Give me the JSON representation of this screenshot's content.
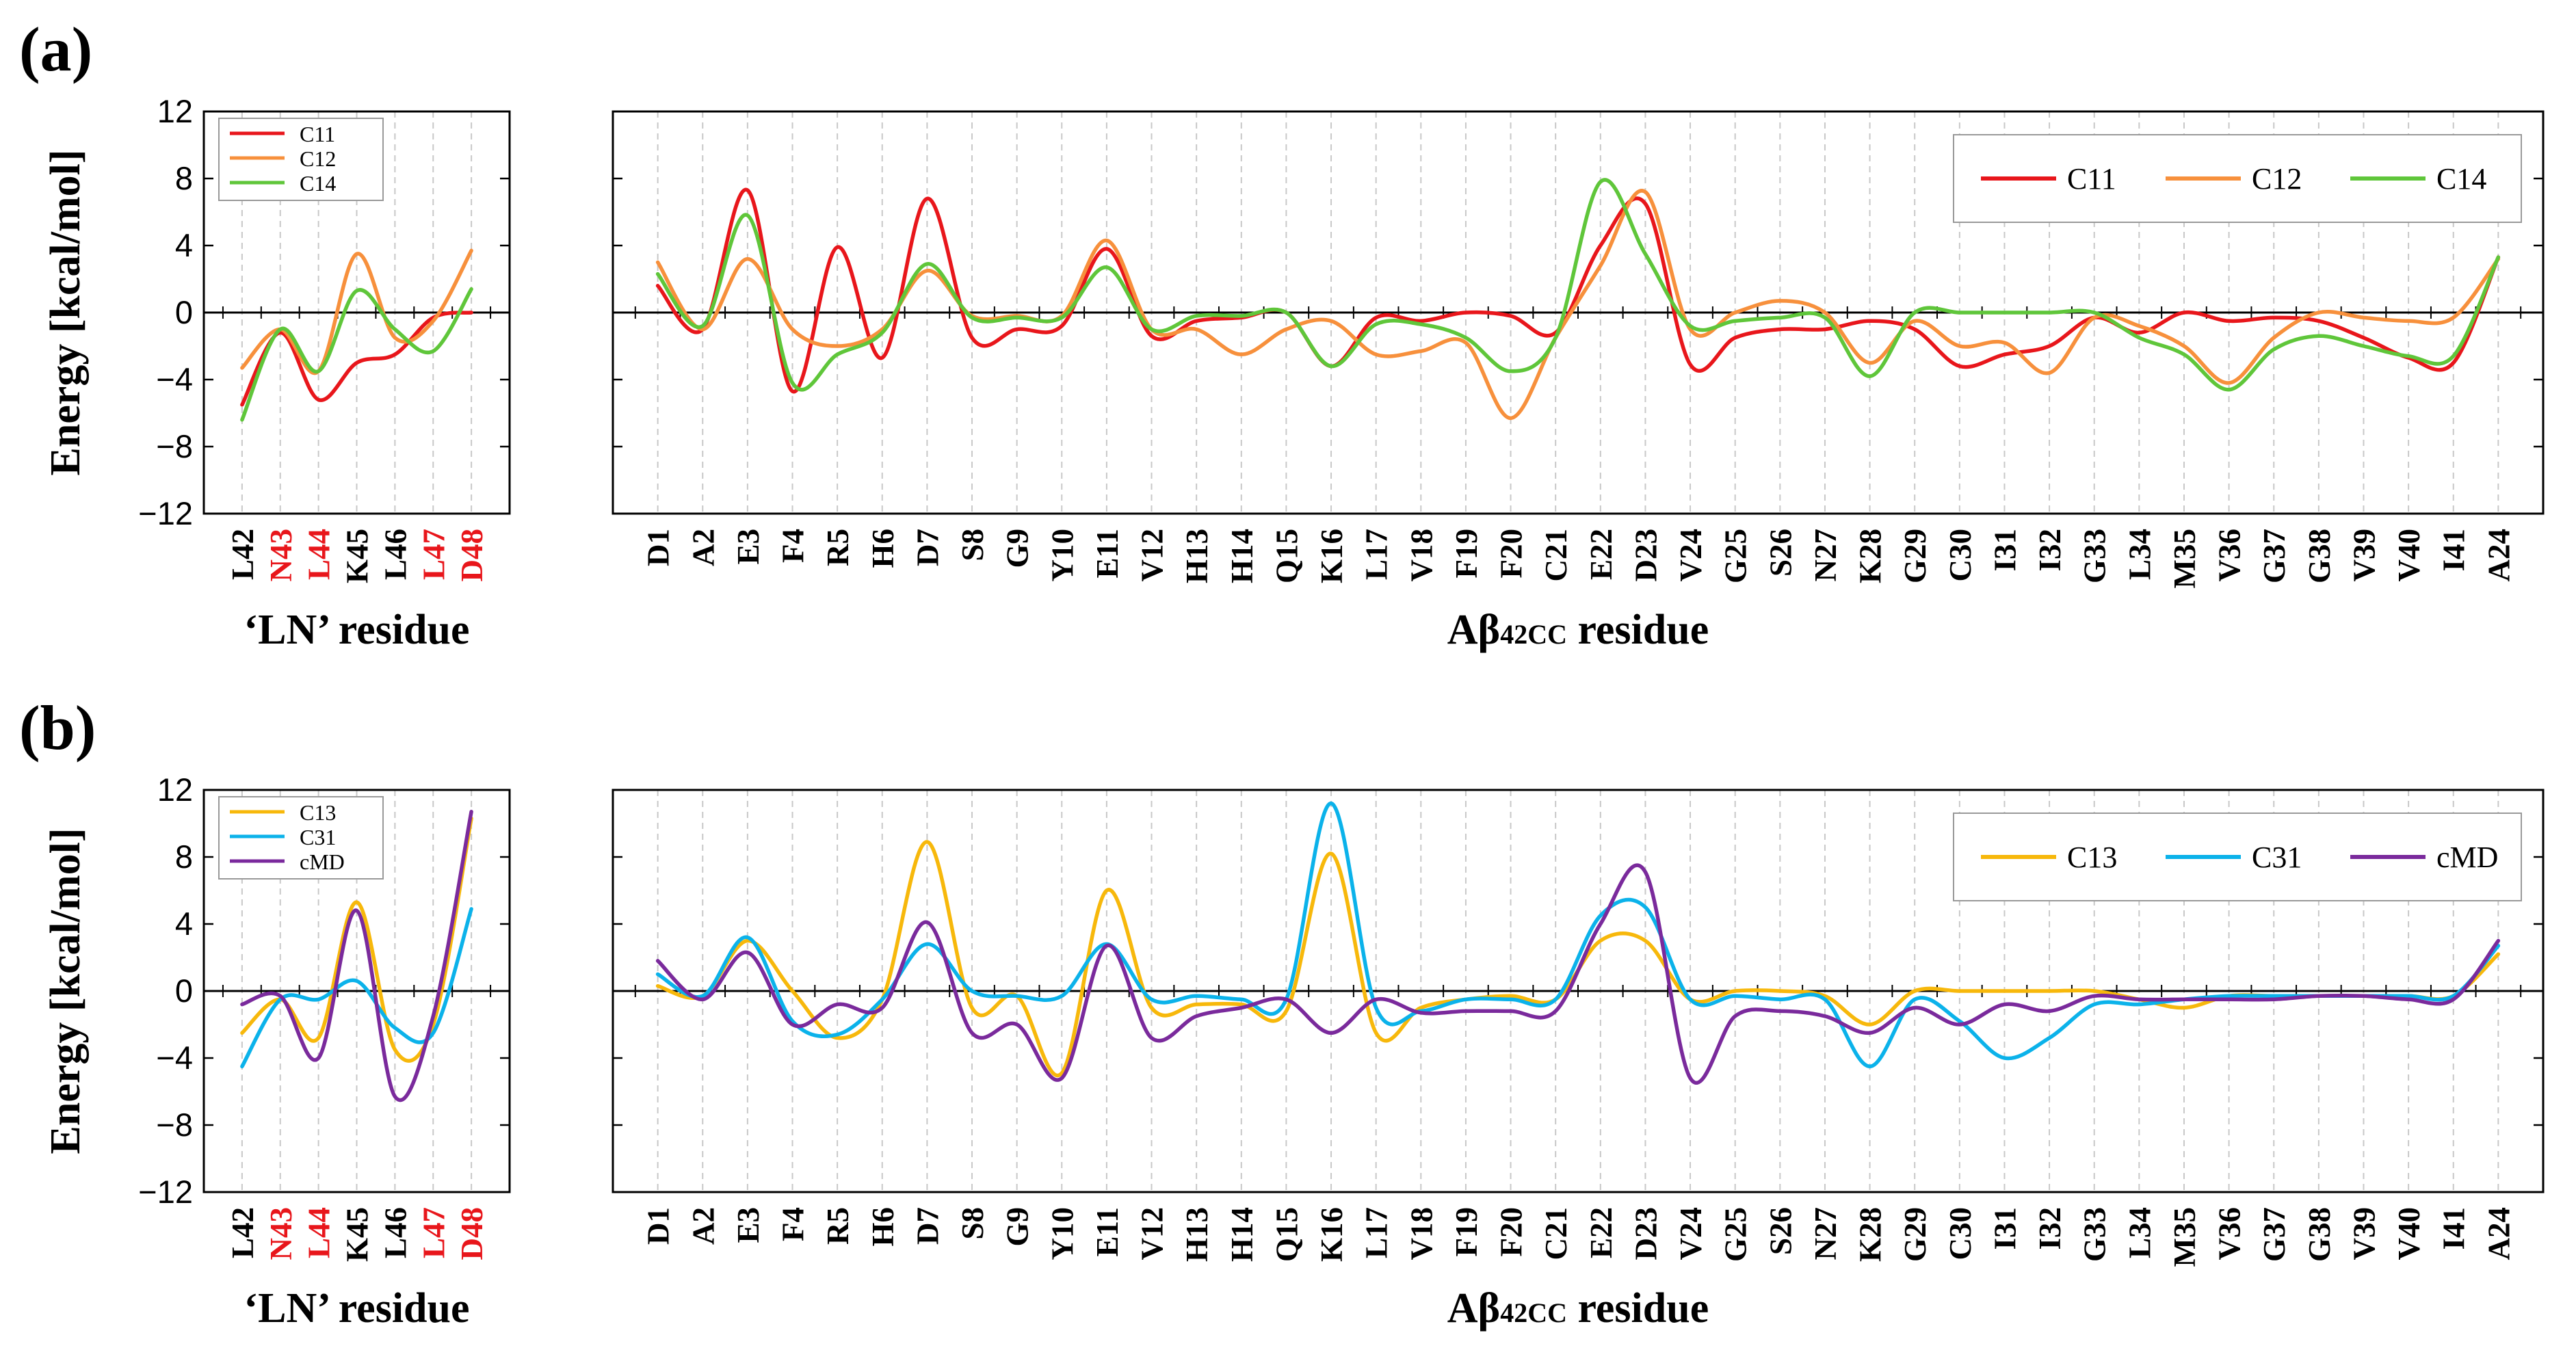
{
  "panels": [
    {
      "id": "a",
      "label": "(a)",
      "ylabel": "Energy [kcal/mol]",
      "yticks": [
        "12",
        "8",
        "4",
        "0",
        "−4",
        "−8",
        "−12"
      ],
      "colors": {
        "C11": "#e8161b",
        "C12": "#f7903c",
        "C14": "#5fc63a"
      },
      "left": {
        "xlabel": "‘LN’ residue",
        "categories": [
          "L42",
          "N43",
          "L44",
          "K45",
          "L46",
          "L47",
          "D48"
        ],
        "red_categories": [
          "N43",
          "L44",
          "L47",
          "D48"
        ],
        "legend": [
          "C11",
          "C12",
          "C14"
        ],
        "series": [
          {
            "name": "C11",
            "values": [
              -5.5,
              -1.2,
              -5.2,
              -3.0,
              -2.5,
              -0.3,
              0.0
            ]
          },
          {
            "name": "C12",
            "values": [
              -3.3,
              -1.0,
              -3.5,
              3.5,
              -1.5,
              -0.5,
              3.7
            ]
          },
          {
            "name": "C14",
            "values": [
              -6.4,
              -1.0,
              -3.5,
              1.3,
              -1.0,
              -2.3,
              1.4
            ]
          }
        ]
      },
      "right": {
        "xlabel_pre": "Aβ",
        "xlabel_sub": "42CC",
        "xlabel_post": " residue",
        "categories": [
          "D1",
          "A2",
          "E3",
          "F4",
          "R5",
          "H6",
          "D7",
          "S8",
          "G9",
          "Y10",
          "E11",
          "V12",
          "H13",
          "H14",
          "Q15",
          "K16",
          "L17",
          "V18",
          "F19",
          "F20",
          "C21",
          "E22",
          "D23",
          "V24",
          "G25",
          "S26",
          "N27",
          "K28",
          "G29",
          "C30",
          "I31",
          "I32",
          "G33",
          "L34",
          "M35",
          "V36",
          "G37",
          "G38",
          "V39",
          "V40",
          "I41",
          "A24"
        ],
        "legend": [
          "C11",
          "C12",
          "C14"
        ],
        "series": [
          {
            "name": "C11",
            "values": [
              1.6,
              -1.0,
              7.3,
              -4.7,
              3.9,
              -2.7,
              6.8,
              -1.5,
              -1.0,
              -0.8,
              3.8,
              -1.4,
              -0.5,
              -0.3,
              0.0,
              -3.2,
              -0.3,
              -0.5,
              0.0,
              -0.2,
              -1.2,
              4.0,
              6.5,
              -3.1,
              -1.5,
              -1.0,
              -1.0,
              -0.5,
              -1.0,
              -3.2,
              -2.5,
              -2.0,
              -0.3,
              -1.2,
              0.0,
              -0.5,
              -0.3,
              -0.5,
              -1.5,
              -2.7,
              -3.0,
              3.3
            ]
          },
          {
            "name": "C12",
            "values": [
              3.0,
              -1.0,
              3.2,
              -1.0,
              -2.0,
              -1.0,
              2.5,
              -0.2,
              -0.2,
              -0.2,
              4.3,
              -1.0,
              -1.0,
              -2.5,
              -1.0,
              -0.5,
              -2.5,
              -2.3,
              -1.8,
              -6.3,
              -1.5,
              2.8,
              7.2,
              -1.0,
              0.0,
              0.7,
              0.0,
              -3.0,
              -0.5,
              -2.0,
              -1.8,
              -3.6,
              -0.3,
              -0.8,
              -2.0,
              -4.2,
              -1.5,
              0.0,
              -0.3,
              -0.5,
              -0.3,
              3.2
            ]
          },
          {
            "name": "C14",
            "values": [
              2.3,
              -0.8,
              5.8,
              -4.2,
              -2.5,
              -1.2,
              2.9,
              -0.3,
              -0.3,
              -0.3,
              2.7,
              -1.0,
              -0.2,
              -0.2,
              0.0,
              -3.2,
              -0.7,
              -0.7,
              -1.5,
              -3.5,
              -1.5,
              7.8,
              3.5,
              -0.8,
              -0.5,
              -0.3,
              -0.3,
              -3.8,
              0.0,
              0.0,
              0.0,
              0.0,
              0.0,
              -1.5,
              -2.5,
              -4.6,
              -2.2,
              -1.4,
              -2.0,
              -2.6,
              -2.6,
              3.3
            ]
          }
        ]
      }
    },
    {
      "id": "b",
      "label": "(b)",
      "ylabel": "Energy [kcal/mol]",
      "yticks": [
        "12",
        "8",
        "4",
        "0",
        "−4",
        "−8",
        "−12"
      ],
      "colors": {
        "C13": "#f7b80b",
        "C31": "#0bb2ea",
        "cMD": "#7a2a9c"
      },
      "left": {
        "xlabel": "‘LN’ residue",
        "categories": [
          "L42",
          "N43",
          "L44",
          "K45",
          "L46",
          "L47",
          "D48"
        ],
        "red_categories": [
          "N43",
          "L44",
          "L47",
          "D48"
        ],
        "legend": [
          "C13",
          "C31",
          "cMD"
        ],
        "series": [
          {
            "name": "C13",
            "values": [
              -2.5,
              -0.5,
              -2.8,
              5.3,
              -3.5,
              -2.0,
              10.3
            ]
          },
          {
            "name": "C31",
            "values": [
              -4.5,
              -0.5,
              -0.5,
              0.6,
              -2.2,
              -2.5,
              4.9
            ]
          },
          {
            "name": "cMD",
            "values": [
              -0.8,
              -0.3,
              -4.0,
              4.8,
              -6.3,
              -1.5,
              10.7
            ]
          }
        ]
      },
      "right": {
        "xlabel_pre": "Aβ",
        "xlabel_sub": "42CC",
        "xlabel_post": " residue",
        "categories": [
          "D1",
          "A2",
          "E3",
          "F4",
          "R5",
          "H6",
          "D7",
          "S8",
          "G9",
          "Y10",
          "E11",
          "V12",
          "H13",
          "H14",
          "Q15",
          "K16",
          "L17",
          "V18",
          "F19",
          "F20",
          "C21",
          "E22",
          "D23",
          "V24",
          "G25",
          "S26",
          "N27",
          "K28",
          "G29",
          "C30",
          "I31",
          "I32",
          "G33",
          "L34",
          "M35",
          "V36",
          "G37",
          "G38",
          "V39",
          "V40",
          "I41",
          "A24"
        ],
        "legend": [
          "C13",
          "C31",
          "cMD"
        ],
        "series": [
          {
            "name": "C13",
            "values": [
              0.3,
              -0.3,
              3.0,
              0.0,
              -2.8,
              -0.5,
              8.9,
              -1.0,
              -0.3,
              -4.9,
              6.0,
              -1.0,
              -0.8,
              -0.8,
              -1.2,
              8.2,
              -2.5,
              -1.0,
              -0.5,
              -0.3,
              -0.5,
              3.0,
              3.0,
              -0.5,
              0.0,
              0.0,
              -0.3,
              -2.0,
              0.0,
              0.0,
              0.0,
              0.0,
              0.0,
              -0.5,
              -1.0,
              -0.3,
              -0.3,
              -0.3,
              -0.3,
              -0.3,
              -0.3,
              2.2
            ]
          },
          {
            "name": "C31",
            "values": [
              1.0,
              -0.3,
              3.2,
              -1.8,
              -2.6,
              -0.5,
              2.8,
              0.0,
              -0.3,
              -0.3,
              2.8,
              -0.5,
              -0.3,
              -0.5,
              -0.5,
              11.2,
              -1.0,
              -1.2,
              -0.5,
              -0.5,
              -0.5,
              4.5,
              5.0,
              -0.5,
              -0.3,
              -0.5,
              -0.5,
              -4.5,
              -0.5,
              -1.8,
              -4.0,
              -2.8,
              -0.8,
              -0.8,
              -0.5,
              -0.3,
              -0.3,
              -0.3,
              -0.3,
              -0.3,
              -0.3,
              2.7
            ]
          },
          {
            "name": "cMD",
            "values": [
              1.8,
              -0.5,
              2.3,
              -2.0,
              -0.8,
              -1.0,
              4.1,
              -2.5,
              -2.0,
              -5.2,
              2.7,
              -2.8,
              -1.5,
              -1.0,
              -0.5,
              -2.5,
              -0.5,
              -1.3,
              -1.2,
              -1.2,
              -1.2,
              4.0,
              7.1,
              -5.2,
              -1.5,
              -1.2,
              -1.5,
              -2.5,
              -1.0,
              -2.0,
              -0.8,
              -1.2,
              -0.3,
              -0.5,
              -0.5,
              -0.5,
              -0.5,
              -0.3,
              -0.3,
              -0.5,
              -0.5,
              3.0
            ]
          }
        ]
      }
    }
  ],
  "chart_data": [
    {
      "type": "line",
      "panel": "(a) left",
      "title": "",
      "xlabel": "‘LN’ residue",
      "ylabel": "Energy [kcal/mol]",
      "ylim": [
        -12,
        12
      ],
      "yticks": [
        12,
        8,
        4,
        0,
        -4,
        -8,
        -12
      ],
      "grid": "vertical dashed",
      "legend_position": "top-left",
      "categories": [
        "L42",
        "N43",
        "L44",
        "K45",
        "L46",
        "L47",
        "D48"
      ],
      "series": [
        {
          "name": "C11",
          "values": [
            -5.5,
            -1.2,
            -5.2,
            -3.0,
            -2.5,
            -0.3,
            0.0
          ]
        },
        {
          "name": "C12",
          "values": [
            -3.3,
            -1.0,
            -3.5,
            3.5,
            -1.5,
            -0.5,
            3.7
          ]
        },
        {
          "name": "C14",
          "values": [
            -6.4,
            -1.0,
            -3.5,
            1.3,
            -1.0,
            -2.3,
            1.4
          ]
        }
      ]
    },
    {
      "type": "line",
      "panel": "(a) right",
      "title": "",
      "xlabel": "Aβ42CC residue",
      "ylabel": "",
      "ylim": [
        -12,
        12
      ],
      "grid": "vertical dashed",
      "legend_position": "top-right",
      "categories": [
        "D1",
        "A2",
        "E3",
        "F4",
        "R5",
        "H6",
        "D7",
        "S8",
        "G9",
        "Y10",
        "E11",
        "V12",
        "H13",
        "H14",
        "Q15",
        "K16",
        "L17",
        "V18",
        "F19",
        "F20",
        "C21",
        "E22",
        "D23",
        "V24",
        "G25",
        "S26",
        "N27",
        "K28",
        "G29",
        "C30",
        "I31",
        "I32",
        "G33",
        "L34",
        "M35",
        "V36",
        "G37",
        "G38",
        "V39",
        "V40",
        "I41",
        "A24"
      ],
      "series": [
        {
          "name": "C11",
          "values": [
            1.6,
            -1.0,
            7.3,
            -4.7,
            3.9,
            -2.7,
            6.8,
            -1.5,
            -1.0,
            -0.8,
            3.8,
            -1.4,
            -0.5,
            -0.3,
            0.0,
            -3.2,
            -0.3,
            -0.5,
            0.0,
            -0.2,
            -1.2,
            4.0,
            6.5,
            -3.1,
            -1.5,
            -1.0,
            -1.0,
            -0.5,
            -1.0,
            -3.2,
            -2.5,
            -2.0,
            -0.3,
            -1.2,
            0.0,
            -0.5,
            -0.3,
            -0.5,
            -1.5,
            -2.7,
            -3.0,
            3.3
          ]
        },
        {
          "name": "C12",
          "values": [
            3.0,
            -1.0,
            3.2,
            -1.0,
            -2.0,
            -1.0,
            2.5,
            -0.2,
            -0.2,
            -0.2,
            4.3,
            -1.0,
            -1.0,
            -2.5,
            -1.0,
            -0.5,
            -2.5,
            -2.3,
            -1.8,
            -6.3,
            -1.5,
            2.8,
            7.2,
            -1.0,
            0.0,
            0.7,
            0.0,
            -3.0,
            -0.5,
            -2.0,
            -1.8,
            -3.6,
            -0.3,
            -0.8,
            -2.0,
            -4.2,
            -1.5,
            0.0,
            -0.3,
            -0.5,
            -0.3,
            3.2
          ]
        },
        {
          "name": "C14",
          "values": [
            2.3,
            -0.8,
            5.8,
            -4.2,
            -2.5,
            -1.2,
            2.9,
            -0.3,
            -0.3,
            -0.3,
            2.7,
            -1.0,
            -0.2,
            -0.2,
            0.0,
            -3.2,
            -0.7,
            -0.7,
            -1.5,
            -3.5,
            -1.5,
            7.8,
            3.5,
            -0.8,
            -0.5,
            -0.3,
            -0.3,
            -3.8,
            0.0,
            0.0,
            0.0,
            0.0,
            0.0,
            -1.5,
            -2.5,
            -4.6,
            -2.2,
            -1.4,
            -2.0,
            -2.6,
            -2.6,
            3.3
          ]
        }
      ]
    },
    {
      "type": "line",
      "panel": "(b) left",
      "title": "",
      "xlabel": "‘LN’ residue",
      "ylabel": "Energy [kcal/mol]",
      "ylim": [
        -12,
        12
      ],
      "grid": "vertical dashed",
      "legend_position": "top-left",
      "categories": [
        "L42",
        "N43",
        "L44",
        "K45",
        "L46",
        "L47",
        "D48"
      ],
      "series": [
        {
          "name": "C13",
          "values": [
            -2.5,
            -0.5,
            -2.8,
            5.3,
            -3.5,
            -2.0,
            10.3
          ]
        },
        {
          "name": "C31",
          "values": [
            -4.5,
            -0.5,
            -0.5,
            0.6,
            -2.2,
            -2.5,
            4.9
          ]
        },
        {
          "name": "cMD",
          "values": [
            -0.8,
            -0.3,
            -4.0,
            4.8,
            -6.3,
            -1.5,
            10.7
          ]
        }
      ]
    },
    {
      "type": "line",
      "panel": "(b) right",
      "title": "",
      "xlabel": "Aβ42CC residue",
      "ylabel": "",
      "ylim": [
        -12,
        12
      ],
      "grid": "vertical dashed",
      "legend_position": "top-right",
      "categories": [
        "D1",
        "A2",
        "E3",
        "F4",
        "R5",
        "H6",
        "D7",
        "S8",
        "G9",
        "Y10",
        "E11",
        "V12",
        "H13",
        "H14",
        "Q15",
        "K16",
        "L17",
        "V18",
        "F19",
        "F20",
        "C21",
        "E22",
        "D23",
        "V24",
        "G25",
        "S26",
        "N27",
        "K28",
        "G29",
        "C30",
        "I31",
        "I32",
        "G33",
        "L34",
        "M35",
        "V36",
        "G37",
        "G38",
        "V39",
        "V40",
        "I41",
        "A24"
      ],
      "series": [
        {
          "name": "C13",
          "values": [
            0.3,
            -0.3,
            3.0,
            0.0,
            -2.8,
            -0.5,
            8.9,
            -1.0,
            -0.3,
            -4.9,
            6.0,
            -1.0,
            -0.8,
            -0.8,
            -1.2,
            8.2,
            -2.5,
            -1.0,
            -0.5,
            -0.3,
            -0.5,
            3.0,
            3.0,
            -0.5,
            0.0,
            0.0,
            -0.3,
            -2.0,
            0.0,
            0.0,
            0.0,
            0.0,
            0.0,
            -0.5,
            -1.0,
            -0.3,
            -0.3,
            -0.3,
            -0.3,
            -0.3,
            -0.3,
            2.2
          ]
        },
        {
          "name": "C31",
          "values": [
            1.0,
            -0.3,
            3.2,
            -1.8,
            -2.6,
            -0.5,
            2.8,
            0.0,
            -0.3,
            -0.3,
            2.8,
            -0.5,
            -0.3,
            -0.5,
            -0.5,
            11.2,
            -1.0,
            -1.2,
            -0.5,
            -0.5,
            -0.5,
            4.5,
            5.0,
            -0.5,
            -0.3,
            -0.5,
            -0.5,
            -4.5,
            -0.5,
            -1.8,
            -4.0,
            -2.8,
            -0.8,
            -0.8,
            -0.5,
            -0.3,
            -0.3,
            -0.3,
            -0.3,
            -0.3,
            -0.3,
            2.7
          ]
        },
        {
          "name": "cMD",
          "values": [
            1.8,
            -0.5,
            2.3,
            -2.0,
            -0.8,
            -1.0,
            4.1,
            -2.5,
            -2.0,
            -5.2,
            2.7,
            -2.8,
            -1.5,
            -1.0,
            -0.5,
            -2.5,
            -0.5,
            -1.3,
            -1.2,
            -1.2,
            -1.2,
            4.0,
            7.1,
            -5.2,
            -1.5,
            -1.2,
            -1.5,
            -2.5,
            -1.0,
            -2.0,
            -0.8,
            -1.2,
            -0.3,
            -0.5,
            -0.5,
            -0.5,
            -0.5,
            -0.3,
            -0.3,
            -0.5,
            -0.5,
            3.0
          ]
        }
      ]
    }
  ]
}
